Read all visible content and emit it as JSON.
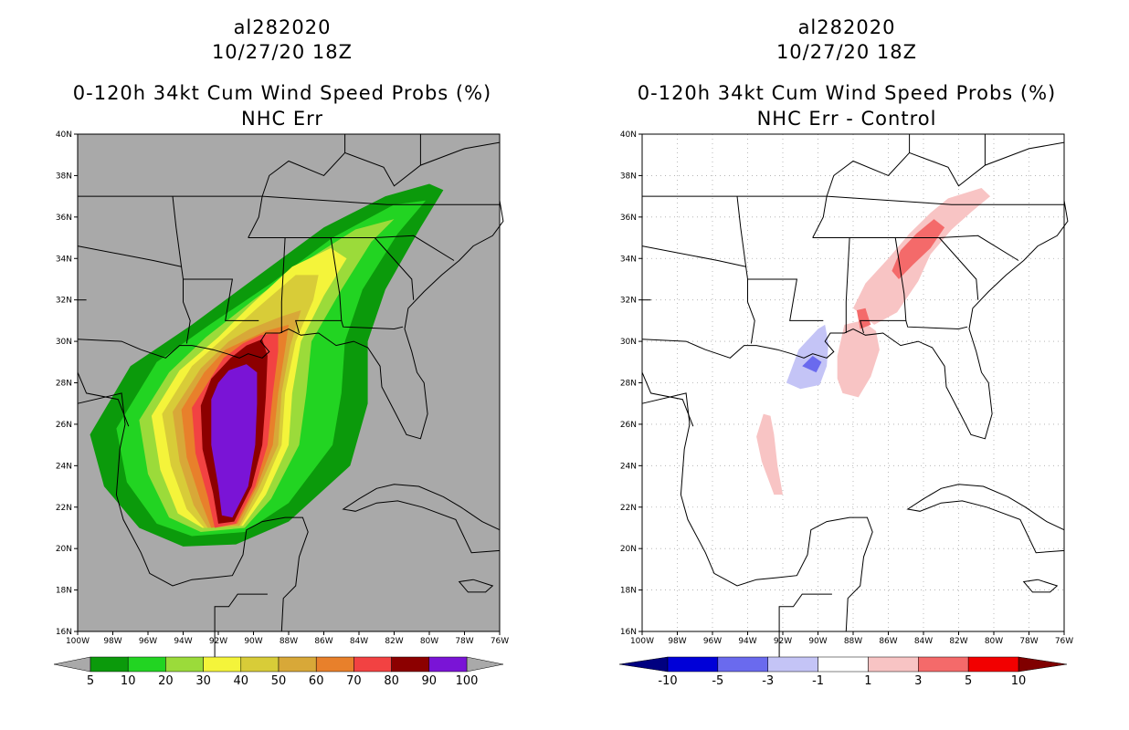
{
  "chart_data": [
    {
      "type": "heatmap",
      "id": "left",
      "title_lines": [
        "al282020",
        "10/27/20 18Z",
        "0-120h 34kt Cum Wind Speed Probs (%)",
        "NHC Err"
      ],
      "xlabel": "",
      "ylabel": "",
      "x_range": [
        -100,
        -76
      ],
      "y_range": [
        16,
        40
      ],
      "x_ticks": [
        "100W",
        "98W",
        "96W",
        "94W",
        "92W",
        "90W",
        "88W",
        "86W",
        "84W",
        "82W",
        "80W",
        "78W",
        "76W"
      ],
      "y_ticks": [
        "16N",
        "18N",
        "20N",
        "22N",
        "24N",
        "26N",
        "28N",
        "30N",
        "32N",
        "34N",
        "36N",
        "38N",
        "40N"
      ],
      "grid": false,
      "background": "#a9a9a9",
      "colorbar": {
        "labels": [
          "5",
          "10",
          "20",
          "30",
          "40",
          "50",
          "60",
          "70",
          "80",
          "90",
          "100"
        ],
        "colors": [
          "#0b9a0b",
          "#22d422",
          "#9bdb3a",
          "#f4f43a",
          "#d8cc38",
          "#d8a838",
          "#e8802b",
          "#f24242",
          "#8c0000",
          "#7a14d6"
        ],
        "under_color": "#a9a9a9",
        "over_color": "#a9a9a9"
      },
      "levels": [
        {
          "min": 5,
          "color": "#0b9a0b"
        },
        {
          "min": 10,
          "color": "#22d422"
        },
        {
          "min": 20,
          "color": "#9bdb3a"
        },
        {
          "min": 30,
          "color": "#f4f43a"
        },
        {
          "min": 40,
          "color": "#d8cc38"
        },
        {
          "min": 50,
          "color": "#d8a838"
        },
        {
          "min": 60,
          "color": "#e8802b"
        },
        {
          "min": 70,
          "color": "#f24242"
        },
        {
          "min": 80,
          "color": "#8c0000"
        },
        {
          "min": 90,
          "color": "#7a14d6"
        }
      ]
    },
    {
      "type": "heatmap",
      "id": "right",
      "title_lines": [
        "al282020",
        "10/27/20 18Z",
        "0-120h 34kt Cum Wind Speed Probs (%)",
        "NHC Err - Control"
      ],
      "xlabel": "",
      "ylabel": "",
      "x_range": [
        -100,
        -76
      ],
      "y_range": [
        16,
        40
      ],
      "x_ticks": [
        "100W",
        "98W",
        "96W",
        "94W",
        "92W",
        "90W",
        "88W",
        "86W",
        "84W",
        "82W",
        "80W",
        "78W",
        "76W"
      ],
      "y_ticks": [
        "16N",
        "18N",
        "20N",
        "22N",
        "24N",
        "26N",
        "28N",
        "30N",
        "32N",
        "34N",
        "36N",
        "38N",
        "40N"
      ],
      "grid": true,
      "background": "#ffffff",
      "colorbar": {
        "labels": [
          "-10",
          "-5",
          "-3",
          "-1",
          "1",
          "3",
          "5",
          "10"
        ],
        "colors": [
          "#0000d8",
          "#6a6aee",
          "#c4c4f6",
          "#ffffff",
          "#f8c4c4",
          "#f46a6a",
          "#f20000"
        ],
        "under_color": "#000080",
        "over_color": "#800000"
      },
      "features": [
        {
          "label": "positive 1-3",
          "color": "#f8c4c4"
        },
        {
          "label": "positive 3-5",
          "color": "#f46a6a"
        },
        {
          "label": "negative -1 to -3",
          "color": "#c4c4f6"
        },
        {
          "label": "negative -3 to -5",
          "color": "#6a6aee"
        }
      ]
    }
  ]
}
